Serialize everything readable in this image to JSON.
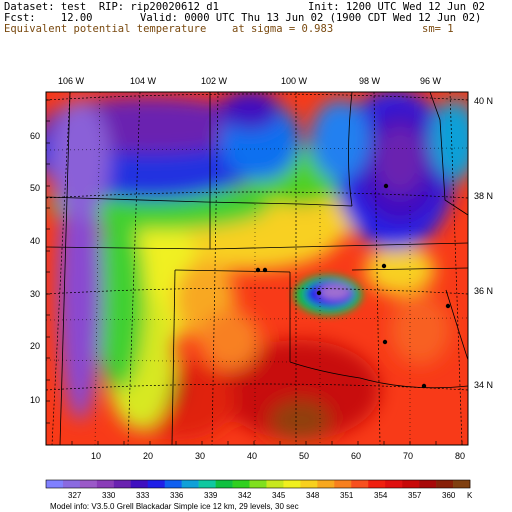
{
  "header": {
    "dataset": "Dataset: test  RIP: rip20020612 d1",
    "init": "Init: 1200 UTC Wed 12 Jun 02",
    "fcst": "Fcst:    12.00",
    "valid": "Valid: 0000 UTC Thu 13 Jun 02 (1900 CDT Wed 12 Jun 02)",
    "field": "Equivalent potential temperature",
    "level": "at sigma = 0.983",
    "smoothing": "sm= 1"
  },
  "map": {
    "lon_labels": [
      "106 W",
      "104 W",
      "102 W",
      "100 W",
      "98 W",
      "96 W"
    ],
    "lat_labels": [
      "40 N",
      "38 N",
      "36 N",
      "34 N"
    ],
    "grid_y_labels": [
      "10",
      "20",
      "30",
      "40",
      "50",
      "60"
    ],
    "grid_x_labels": [
      "10",
      "20",
      "30",
      "40",
      "50",
      "60",
      "70",
      "80"
    ]
  },
  "colorbar": {
    "labels": [
      "327",
      "330",
      "333",
      "336",
      "339",
      "342",
      "345",
      "348",
      "351",
      "354",
      "357",
      "360"
    ],
    "unit": "K",
    "colors": [
      "#8080ff",
      "#8a6ae0",
      "#9b59c8",
      "#8a3cb8",
      "#6a22b0",
      "#4010c0",
      "#2020e8",
      "#1060f0",
      "#10a0d8",
      "#10c8a0",
      "#10c040",
      "#30d020",
      "#80e020",
      "#c8e820",
      "#f0f020",
      "#f8d020",
      "#f8a820",
      "#f88020",
      "#f85020",
      "#f02010",
      "#e01010",
      "#c80808",
      "#a80808",
      "#882008",
      "#804010"
    ]
  },
  "footer": {
    "model_info": "Model info: V3.5.0  Grell     Blackadar  Simple ice    12 km,  29 levels,    30 sec"
  }
}
